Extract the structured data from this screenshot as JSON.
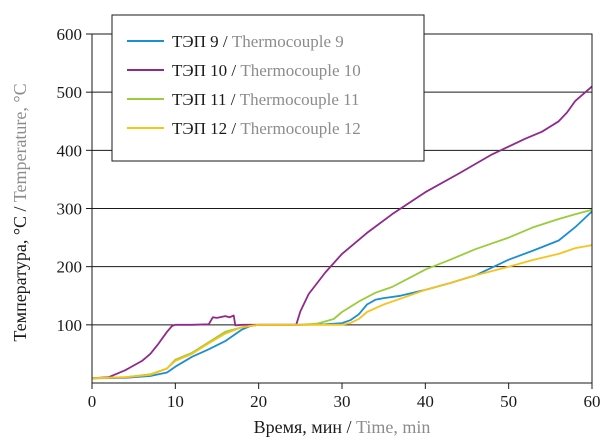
{
  "chart_data": {
    "type": "line",
    "xlabel": {
      "ru": "Время, мин",
      "en": "Time, min"
    },
    "ylabel": {
      "ru": "Температура, °C",
      "en": "Temperature, °C"
    },
    "xlim": [
      0,
      60
    ],
    "ylim": [
      0,
      600
    ],
    "x_ticks": [
      0,
      10,
      20,
      30,
      40,
      50,
      60
    ],
    "y_ticks": [
      100,
      200,
      300,
      400,
      500,
      600
    ],
    "grid": "horizontal",
    "legend_position": "top-left",
    "series": [
      {
        "name_ru": "ТЭП 9",
        "name_en": "Thermocouple 9",
        "color": "#1b8fd2",
        "points": [
          [
            0,
            8
          ],
          [
            4,
            9
          ],
          [
            7,
            12
          ],
          [
            9,
            18
          ],
          [
            10,
            28
          ],
          [
            12,
            45
          ],
          [
            14,
            58
          ],
          [
            16,
            72
          ],
          [
            17,
            82
          ],
          [
            18,
            92
          ],
          [
            19,
            98
          ],
          [
            20,
            100
          ],
          [
            22,
            100
          ],
          [
            25,
            100
          ],
          [
            28,
            101
          ],
          [
            30,
            103
          ],
          [
            31,
            108
          ],
          [
            32,
            118
          ],
          [
            33,
            135
          ],
          [
            34,
            143
          ],
          [
            35,
            146
          ],
          [
            37,
            150
          ],
          [
            40,
            160
          ],
          [
            43,
            172
          ],
          [
            46,
            185
          ],
          [
            50,
            212
          ],
          [
            53,
            228
          ],
          [
            56,
            245
          ],
          [
            58,
            268
          ],
          [
            60,
            295
          ]
        ]
      },
      {
        "name_ru": "ТЭП 10",
        "name_en": "Thermocouple 10",
        "color": "#8e2a8b",
        "points": [
          [
            0,
            8
          ],
          [
            2,
            10
          ],
          [
            4,
            22
          ],
          [
            6,
            38
          ],
          [
            7,
            50
          ],
          [
            8,
            68
          ],
          [
            9,
            88
          ],
          [
            9.6,
            98
          ],
          [
            10,
            100
          ],
          [
            12,
            100
          ],
          [
            14,
            101
          ],
          [
            14.5,
            113
          ],
          [
            15,
            112
          ],
          [
            16,
            115
          ],
          [
            16.5,
            113
          ],
          [
            17,
            116
          ],
          [
            17.2,
            99
          ],
          [
            18,
            100
          ],
          [
            20,
            100
          ],
          [
            22,
            100
          ],
          [
            24.5,
            100
          ],
          [
            25,
            123
          ],
          [
            26,
            153
          ],
          [
            28,
            190
          ],
          [
            30,
            222
          ],
          [
            33,
            258
          ],
          [
            36,
            290
          ],
          [
            40,
            328
          ],
          [
            44,
            360
          ],
          [
            48,
            393
          ],
          [
            52,
            420
          ],
          [
            54,
            432
          ],
          [
            56,
            450
          ],
          [
            57,
            465
          ],
          [
            58,
            485
          ],
          [
            60,
            510
          ]
        ]
      },
      {
        "name_ru": "ТЭП 11",
        "name_en": "Thermocouple 11",
        "color": "#9bcc3b",
        "points": [
          [
            0,
            8
          ],
          [
            4,
            10
          ],
          [
            7,
            15
          ],
          [
            9,
            25
          ],
          [
            10,
            40
          ],
          [
            12,
            52
          ],
          [
            14,
            70
          ],
          [
            16,
            88
          ],
          [
            18,
            96
          ],
          [
            20,
            100
          ],
          [
            22,
            100
          ],
          [
            25,
            100
          ],
          [
            27,
            102
          ],
          [
            29,
            110
          ],
          [
            30,
            122
          ],
          [
            32,
            140
          ],
          [
            34,
            155
          ],
          [
            36,
            165
          ],
          [
            38,
            180
          ],
          [
            40,
            195
          ],
          [
            43,
            212
          ],
          [
            46,
            230
          ],
          [
            50,
            250
          ],
          [
            53,
            268
          ],
          [
            56,
            282
          ],
          [
            58,
            290
          ],
          [
            60,
            298
          ]
        ]
      },
      {
        "name_ru": "ТЭП 12",
        "name_en": "Thermocouple 12",
        "color": "#f7c31c",
        "points": [
          [
            0,
            8
          ],
          [
            4,
            10
          ],
          [
            7,
            14
          ],
          [
            9,
            25
          ],
          [
            10,
            38
          ],
          [
            12,
            50
          ],
          [
            14,
            68
          ],
          [
            16,
            85
          ],
          [
            18,
            96
          ],
          [
            20,
            100
          ],
          [
            25,
            100
          ],
          [
            28,
            100
          ],
          [
            30,
            100
          ],
          [
            31,
            103
          ],
          [
            32,
            110
          ],
          [
            33,
            122
          ],
          [
            35,
            135
          ],
          [
            38,
            150
          ],
          [
            40,
            160
          ],
          [
            43,
            172
          ],
          [
            46,
            185
          ],
          [
            50,
            200
          ],
          [
            53,
            212
          ],
          [
            56,
            222
          ],
          [
            58,
            232
          ],
          [
            60,
            237
          ]
        ]
      }
    ]
  }
}
